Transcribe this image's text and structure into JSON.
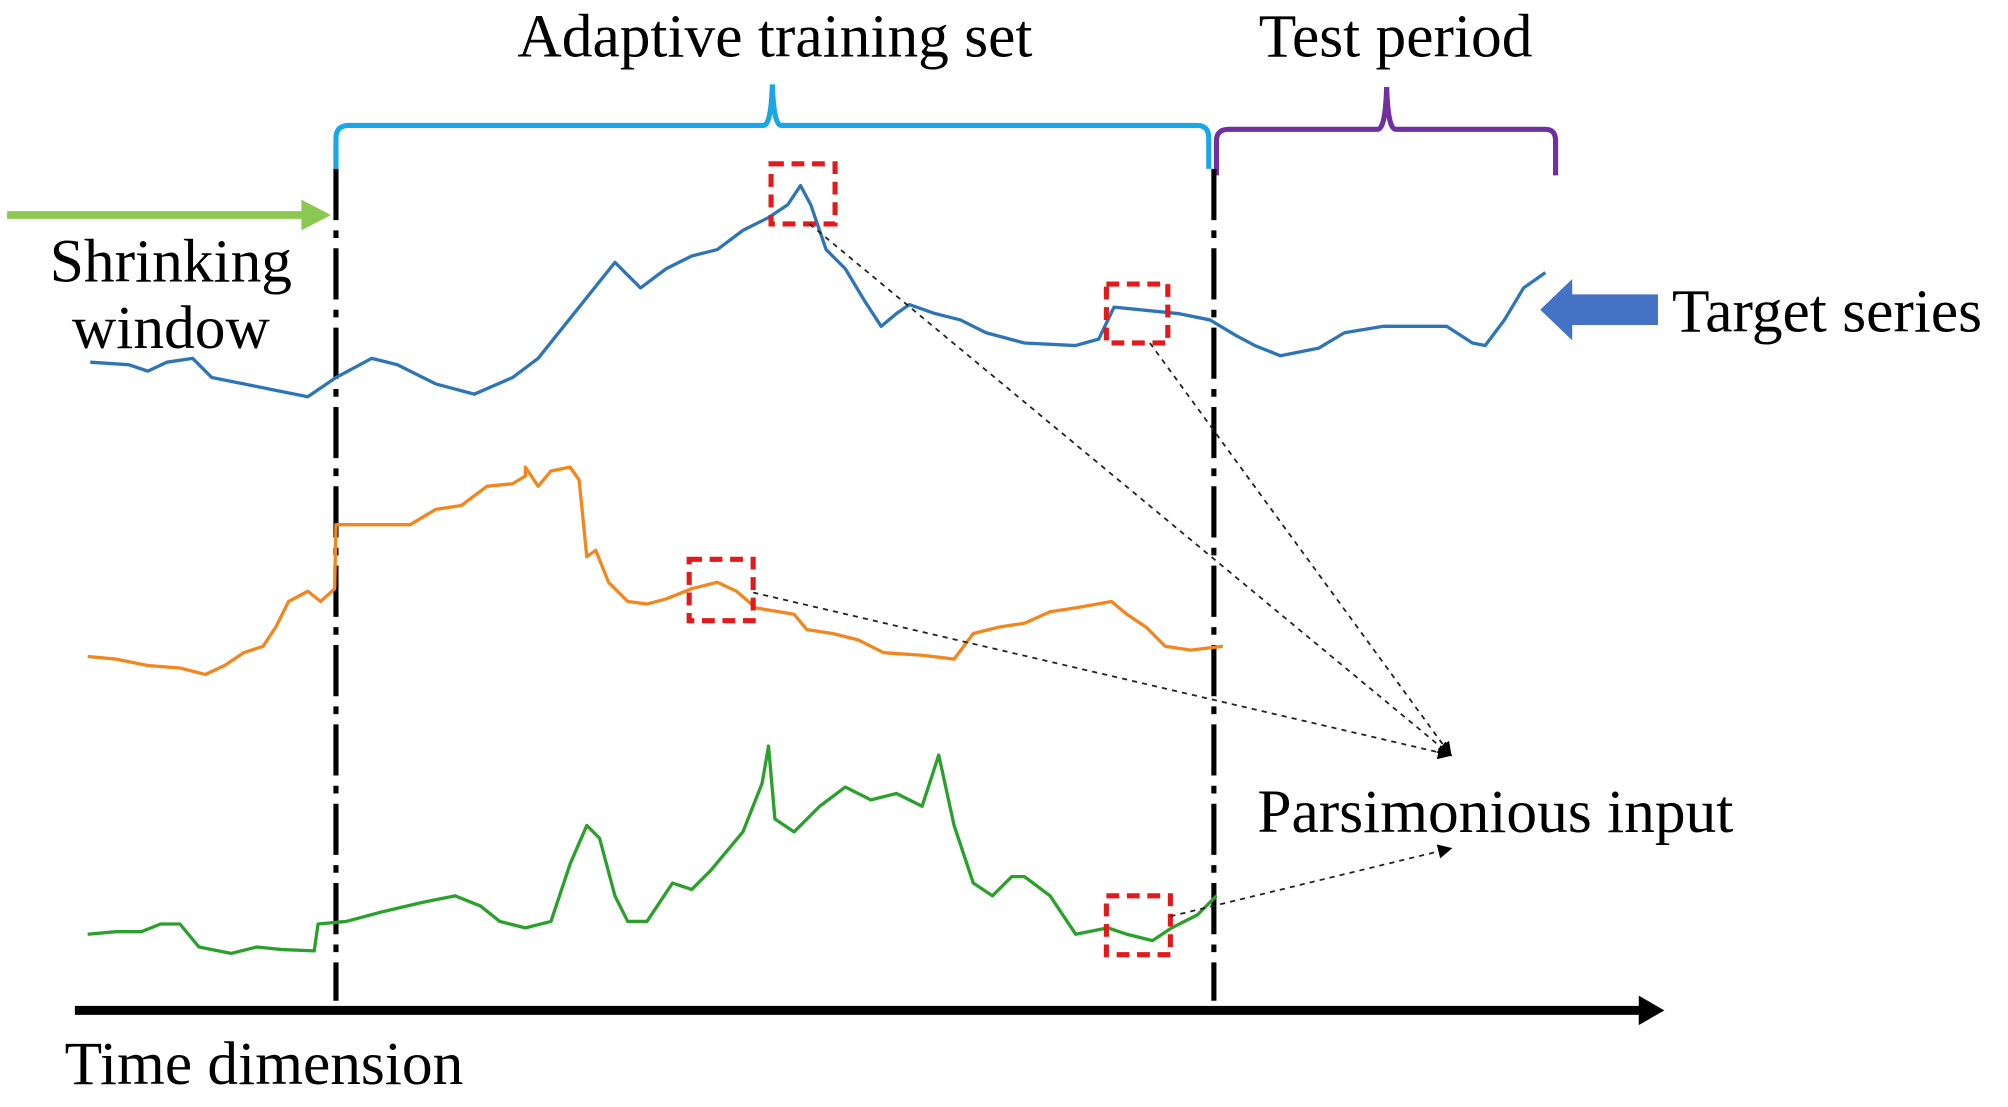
{
  "labels": {
    "training_set": "Adaptive training set",
    "test_period": "Test period",
    "shrinking_line1": "Shrinking",
    "shrinking_line2": "window",
    "target_series": "Target series",
    "parsimonious_input": "Parsimonious input",
    "time_axis": "Time dimension"
  },
  "colors": {
    "target_series": "#2e75b6",
    "series_2": "#f0871f",
    "series_3": "#2ca02c",
    "training_brace": "#1aa7e6",
    "test_brace": "#7030a0",
    "shrinking_arrow": "#8cc751",
    "target_arrow": "#4472c4",
    "highlight_box": "#e31a1c"
  }
}
